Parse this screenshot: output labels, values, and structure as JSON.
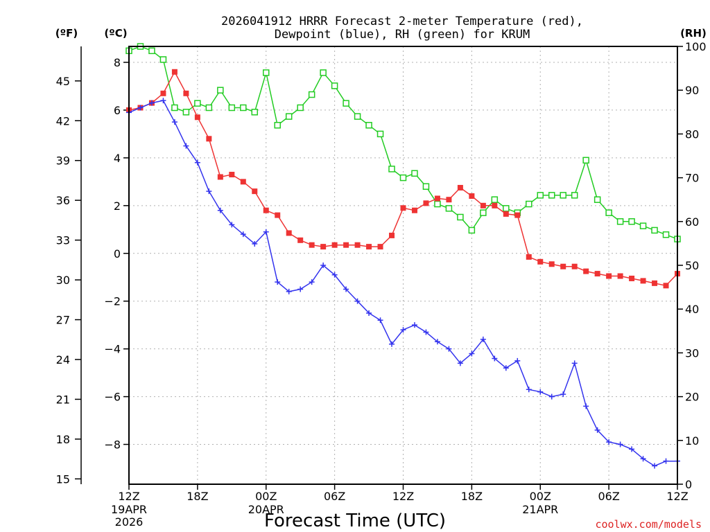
{
  "chart_data": {
    "type": "line",
    "title_line1": "2026041912 HRRR Forecast 2-meter Temperature (red),",
    "title_line2": "Dewpoint (blue), RH (green) for KRUM",
    "xlabel": "Forecast Time (UTC)",
    "watermark": "coolwx.com/models",
    "unit_f": "(ºF)",
    "unit_c": "(ºC)",
    "unit_rh": "(RH)",
    "x_ticks": [
      {
        "hour": 0,
        "label": "12Z",
        "sub1": "19APR",
        "sub2": "2026"
      },
      {
        "hour": 6,
        "label": "18Z",
        "sub1": "",
        "sub2": ""
      },
      {
        "hour": 12,
        "label": "00Z",
        "sub1": "20APR",
        "sub2": ""
      },
      {
        "hour": 18,
        "label": "06Z",
        "sub1": "",
        "sub2": ""
      },
      {
        "hour": 24,
        "label": "12Z",
        "sub1": "",
        "sub2": ""
      },
      {
        "hour": 30,
        "label": "18Z",
        "sub1": "",
        "sub2": ""
      },
      {
        "hour": 36,
        "label": "00Z",
        "sub1": "21APR",
        "sub2": ""
      },
      {
        "hour": 42,
        "label": "06Z",
        "sub1": "",
        "sub2": ""
      },
      {
        "hour": 48,
        "label": "12Z",
        "sub1": "",
        "sub2": ""
      }
    ],
    "xlim": [
      0,
      48
    ],
    "ylim_c": [
      -9.667,
      8.667
    ],
    "ylim_rh": [
      0,
      100
    ],
    "y_ticks_c": [
      -8,
      -6,
      -4,
      -2,
      0,
      2,
      4,
      6,
      8
    ],
    "y_tick_labels_c": [
      "−8",
      "−6",
      "−4",
      "−2",
      "0",
      "2",
      "4",
      "6",
      "8"
    ],
    "y_ticks_f": [
      15,
      18,
      21,
      24,
      27,
      30,
      33,
      36,
      39,
      42,
      45
    ],
    "y_ticks_rh": [
      0,
      10,
      20,
      30,
      40,
      50,
      60,
      70,
      80,
      90,
      100
    ],
    "series": [
      {
        "name": "2-meter Temperature",
        "unit": "C",
        "color": "#ee3333",
        "marker": "filled-square",
        "values": [
          6.0,
          6.1,
          6.3,
          6.7,
          7.6,
          6.7,
          5.7,
          4.8,
          3.2,
          3.3,
          3.0,
          2.6,
          1.8,
          1.6,
          0.85,
          0.55,
          0.35,
          0.28,
          0.35,
          0.35,
          0.35,
          0.28,
          0.28,
          0.75,
          1.9,
          1.8,
          2.1,
          2.3,
          2.25,
          2.75,
          2.4,
          2.0,
          2.0,
          1.65,
          1.6,
          -0.15,
          -0.35,
          -0.45,
          -0.55,
          -0.55,
          -0.75,
          -0.85,
          -0.95,
          -0.95,
          -1.05,
          -1.15,
          -1.25,
          -1.35,
          -0.85
        ]
      },
      {
        "name": "Dewpoint",
        "unit": "C",
        "color": "#3333ee",
        "marker": "plus",
        "values": [
          5.9,
          6.1,
          6.3,
          6.4,
          5.5,
          4.5,
          3.8,
          2.6,
          1.8,
          1.2,
          0.8,
          0.4,
          0.9,
          -1.2,
          -1.6,
          -1.5,
          -1.2,
          -0.5,
          -0.9,
          -1.5,
          -2.0,
          -2.5,
          -2.8,
          -3.8,
          -3.2,
          -3.0,
          -3.3,
          -3.7,
          -4.0,
          -4.6,
          -4.2,
          -3.6,
          -4.4,
          -4.8,
          -4.5,
          -5.7,
          -5.8,
          -6.0,
          -5.9,
          -4.6,
          -6.4,
          -7.4,
          -7.9,
          -8.0,
          -8.2,
          -8.6,
          -8.9,
          -8.7,
          -8.7
        ]
      },
      {
        "name": "RH",
        "unit": "%",
        "color": "#22cc22",
        "marker": "open-square",
        "values": [
          99,
          100,
          99,
          97,
          86,
          85,
          87,
          86,
          90,
          86,
          86,
          85,
          94,
          82,
          84,
          86,
          89,
          94,
          91,
          87,
          84,
          82,
          80,
          72,
          70,
          71,
          68,
          64,
          63,
          61,
          58,
          62,
          65,
          63,
          62,
          64,
          66,
          66,
          66,
          66,
          74,
          65,
          62,
          60,
          60,
          59,
          58,
          57,
          56
        ]
      }
    ]
  }
}
